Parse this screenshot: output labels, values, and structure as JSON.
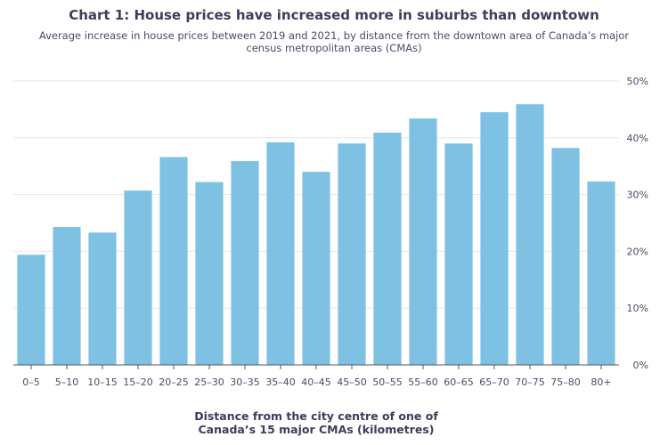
{
  "chart_data": {
    "type": "bar",
    "title": "Chart 1: House prices have increased more in suburbs than downtown",
    "subtitle": "Average increase in house prices between 2019 and 2021, by distance from the downtown area of Canada’s major census metropolitan areas (CMAs)",
    "xlabel": "Distance from the city centre of one of Canada’s 15 major CMAs (kilometres)",
    "ylabel": "",
    "categories": [
      "0–5",
      "5–10",
      "10–15",
      "15–20",
      "20–25",
      "25–30",
      "30–35",
      "35–40",
      "40–45",
      "45–50",
      "50–55",
      "55–60",
      "60–65",
      "65–70",
      "70–75",
      "75–80",
      "80+"
    ],
    "values": [
      19.4,
      24.3,
      23.3,
      30.7,
      36.6,
      32.2,
      35.9,
      39.2,
      34.0,
      39.0,
      40.9,
      43.4,
      39.0,
      44.5,
      45.9,
      38.2,
      32.3
    ],
    "ylim": [
      0,
      50
    ],
    "yticks": [
      "0%",
      "10%",
      "20%",
      "30%",
      "40%",
      "50%"
    ],
    "ytick_values": [
      0,
      10,
      20,
      30,
      40,
      50
    ],
    "y_axis_side": "right",
    "grid": true,
    "bar_color": "#7fc1e3"
  }
}
